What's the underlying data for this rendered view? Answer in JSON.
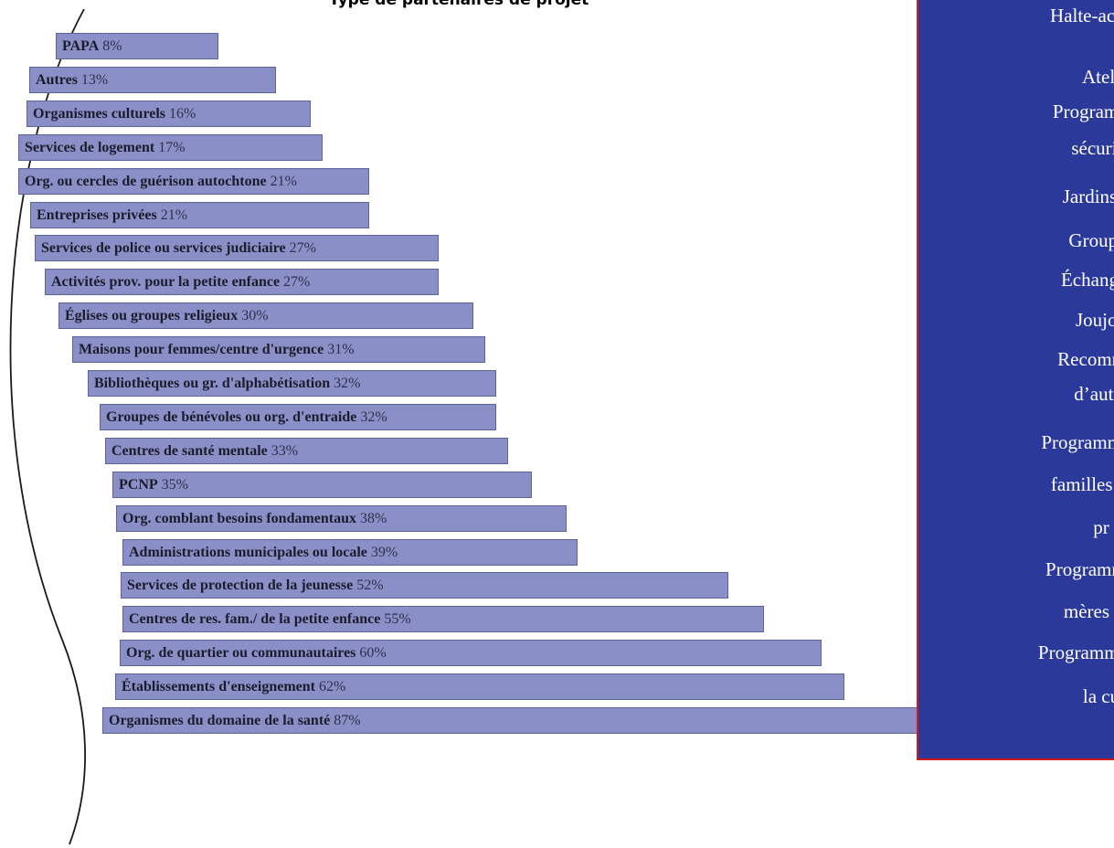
{
  "chart_data": {
    "type": "bar",
    "orientation": "horizontal",
    "title": "Type de partenaires de projet",
    "unit": "%",
    "categories": [
      "PAPA",
      "Autres",
      "Organismes culturels",
      "Services de logement",
      "Org. ou cercles de guérison autochtone",
      "Entreprises privées",
      "Services de police ou services judiciaire",
      "Activités prov. pour la petite enfance",
      "Églises ou groupes religieux",
      "Maisons pour femmes/centre d'urgence",
      "Bibliothèques ou gr. d'alphabétisation",
      "Groupes de bénévoles ou org. d'entraide",
      "Centres de santé mentale",
      "PCNP",
      "Org. comblant besoins fondamentaux",
      "Administrations municipales ou locale",
      "Services de protection de la jeunesse",
      "Centres de res. fam./ de la petite enfance",
      "Org. de quartier ou communautaires",
      "Établissements d'enseignement",
      "Organismes du domaine de la santé"
    ],
    "values": [
      8,
      13,
      16,
      17,
      21,
      21,
      27,
      27,
      30,
      31,
      32,
      32,
      33,
      35,
      38,
      39,
      52,
      55,
      60,
      62,
      87
    ],
    "value_labels": [
      "8%",
      "13%",
      "16%",
      "17%",
      "21%",
      "21%",
      "27%",
      "27%",
      "30%",
      "31%",
      "32%",
      "32%",
      "33%",
      "35%",
      "38%",
      "39%",
      "52%",
      "55%",
      "60%",
      "62%",
      "87%"
    ],
    "bar_color": "#8a8fc8",
    "bar_border_color": "#5f6498"
  },
  "side_panel": {
    "background": "#2b3a9a",
    "border_color": "#d11a1a",
    "lines": [
      "Halte-accueil",
      "Ateli",
      "Programmes",
      "sécurité",
      "Jardins co",
      "Groupes",
      "Échange d",
      "Joujou",
      "Recomman",
      "d’autre",
      "Programmes de",
      "familles dont",
      "pr",
      "Programmes d",
      "mères tox",
      "Programmes par",
      "la cu"
    ]
  }
}
